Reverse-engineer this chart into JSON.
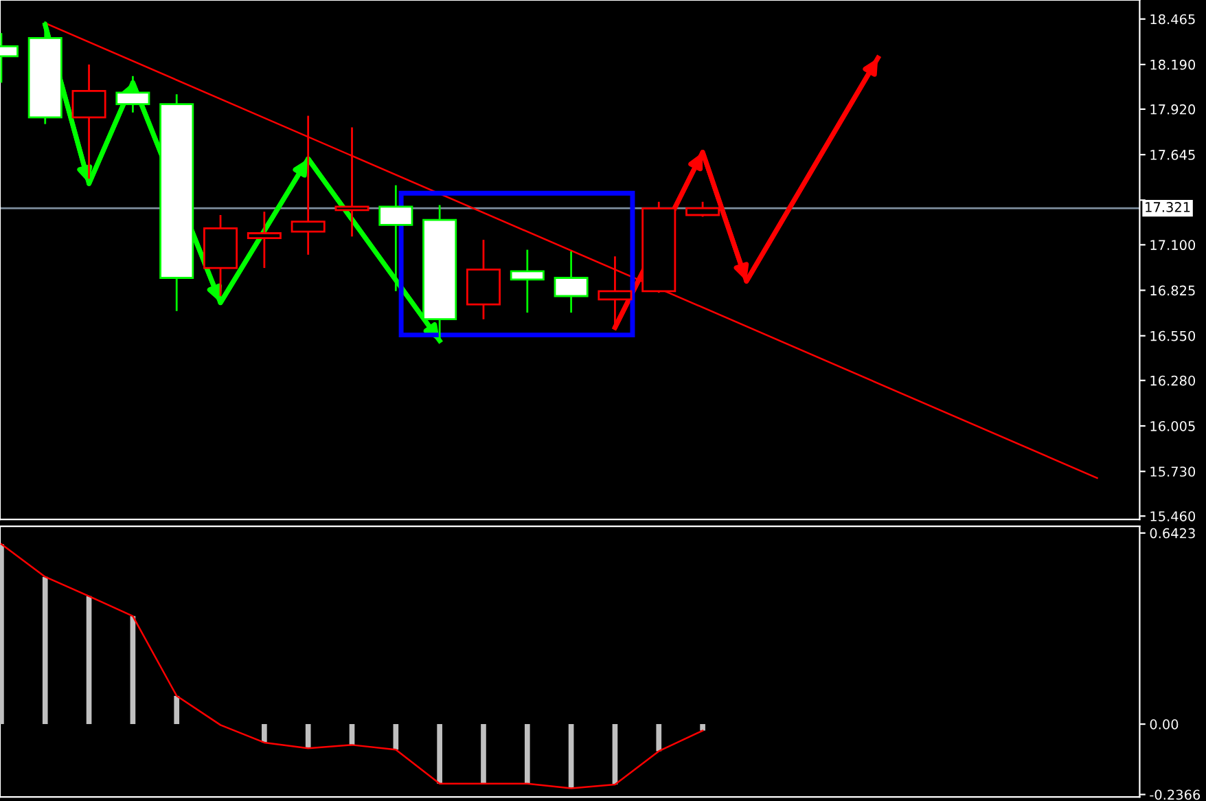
{
  "chart_data": [
    {
      "type": "candlestick",
      "categories": [
        null,
        null,
        null,
        null,
        null,
        null,
        null,
        null,
        null,
        null,
        null,
        null,
        null,
        null,
        null,
        null,
        null,
        null,
        null,
        null,
        null,
        null,
        null,
        null,
        null,
        null
      ],
      "ohlc": [
        [
          18.3,
          18.38,
          18.08,
          18.24
        ],
        [
          18.35,
          18.45,
          17.83,
          17.87
        ],
        [
          17.87,
          18.19,
          17.5,
          18.03
        ],
        [
          18.02,
          18.12,
          17.9,
          17.95
        ],
        [
          17.95,
          18.01,
          16.7,
          16.9
        ],
        [
          16.96,
          17.28,
          16.79,
          17.2
        ],
        [
          17.14,
          17.3,
          16.96,
          17.17
        ],
        [
          17.18,
          17.88,
          17.04,
          17.24
        ],
        [
          17.31,
          17.81,
          17.15,
          17.33
        ],
        [
          17.33,
          17.46,
          16.82,
          17.22
        ],
        [
          17.25,
          17.34,
          16.52,
          16.65
        ],
        [
          16.74,
          17.13,
          16.65,
          16.95
        ],
        [
          16.94,
          17.07,
          16.69,
          16.89
        ],
        [
          16.9,
          17.06,
          16.69,
          16.79
        ],
        [
          16.77,
          17.03,
          16.59,
          16.82
        ],
        [
          16.82,
          17.36,
          16.81,
          17.32
        ],
        [
          17.28,
          17.36,
          17.27,
          17.321
        ],
        null,
        null,
        null,
        null,
        null,
        null,
        null,
        null,
        null
      ],
      "colors": [
        "#00ff00",
        "#00ff00",
        "#ff0000",
        "#00ff00",
        "#00ff00",
        "#ff0000",
        "#ff0000",
        "#ff0000",
        "#ff0000",
        "#00ff00",
        "#00ff00",
        "#ff0000",
        "#00ff00",
        "#00ff00",
        "#ff0000",
        "#ff0000",
        "#ff0000",
        null,
        null,
        null,
        null,
        null,
        null,
        null,
        null,
        null
      ],
      "series": [
        {
          "type": "line",
          "color": "#ff0000",
          "values": [
            null,
            18.44,
            null,
            null,
            null,
            null,
            null,
            null,
            null,
            null,
            null,
            null,
            null,
            null,
            null,
            null,
            null,
            null,
            null,
            null,
            null,
            null,
            null,
            null,
            null,
            15.69
          ]
        },
        {
          "type": "line",
          "color": "#00ff00",
          "values": [
            null,
            18.43,
            17.47,
            18.08,
            null,
            16.75,
            null,
            17.62,
            null,
            null,
            16.52,
            null,
            null,
            null,
            null,
            null,
            null,
            null,
            null,
            null,
            null,
            null,
            null,
            null,
            null,
            null
          ]
        },
        {
          "type": "line",
          "color": "#ff0000",
          "values": [
            null,
            null,
            null,
            null,
            null,
            null,
            null,
            null,
            null,
            null,
            null,
            null,
            null,
            null,
            16.6,
            null,
            17.66,
            16.88,
            null,
            null,
            18.23,
            null,
            null,
            null,
            null,
            null
          ]
        }
      ],
      "ref_lines": [
        {
          "axis": "y",
          "value": 17.321,
          "label": "17.321",
          "color": "#8090a0"
        }
      ],
      "ylim": [
        15.44,
        18.58
      ],
      "yticks": [
        {
          "value": 18.465,
          "label": "18.465"
        },
        {
          "value": 18.19,
          "label": "18.190"
        },
        {
          "value": 17.92,
          "label": "17.920"
        },
        {
          "value": 17.645,
          "label": "17.645"
        },
        {
          "value": 17.37,
          "label": null
        },
        {
          "value": 17.1,
          "label": "17.100"
        },
        {
          "value": 16.825,
          "label": "16.825"
        },
        {
          "value": 16.55,
          "label": "16.550"
        },
        {
          "value": 16.28,
          "label": "16.280"
        },
        {
          "value": 16.005,
          "label": "16.005"
        },
        {
          "value": 15.73,
          "label": "15.730"
        },
        {
          "value": 15.46,
          "label": "15.460"
        }
      ],
      "tick_labels": "y",
      "grid": false,
      "legend": false
    },
    {
      "type": "bar",
      "categories": [
        null,
        null,
        null,
        null,
        null,
        null,
        null,
        null,
        null,
        null,
        null,
        null,
        null,
        null,
        null,
        null,
        null,
        null,
        null,
        null,
        null,
        null,
        null,
        null,
        null,
        null
      ],
      "series": [
        {
          "type": "bar",
          "color": "#c0c0c0",
          "values": [
            0.605,
            0.495,
            0.43,
            0.363,
            0.095,
            0,
            -0.062,
            -0.081,
            -0.07,
            -0.086,
            -0.2,
            -0.2,
            -0.2,
            -0.216,
            -0.203,
            -0.091,
            -0.022,
            null,
            null,
            null,
            null,
            null,
            null,
            null,
            null,
            null
          ]
        },
        {
          "type": "line",
          "color": "#ff0000",
          "values": [
            0.605,
            0.495,
            0.43,
            0.363,
            0.095,
            -0.003,
            -0.062,
            -0.081,
            -0.07,
            -0.086,
            -0.2,
            -0.2,
            -0.2,
            -0.216,
            -0.203,
            -0.091,
            -0.022,
            null,
            null,
            null,
            null,
            null,
            null,
            null,
            null,
            null
          ]
        }
      ],
      "ylim": [
        -0.245,
        0.665
      ],
      "yticks": [
        {
          "value": 0.6423,
          "label": "0.6423"
        },
        {
          "value": 0,
          "label": "0.00"
        },
        {
          "value": -0.2366,
          "label": "-0.2366"
        }
      ],
      "tick_labels": "y",
      "grid": false,
      "legend": false
    }
  ]
}
